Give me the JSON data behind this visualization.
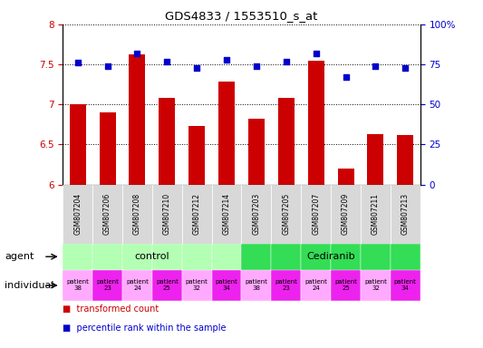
{
  "title": "GDS4833 / 1553510_s_at",
  "samples": [
    "GSM807204",
    "GSM807206",
    "GSM807208",
    "GSM807210",
    "GSM807212",
    "GSM807214",
    "GSM807203",
    "GSM807205",
    "GSM807207",
    "GSM807209",
    "GSM807211",
    "GSM807213"
  ],
  "bar_values": [
    7.0,
    6.9,
    7.62,
    7.08,
    6.73,
    7.28,
    6.82,
    7.08,
    7.55,
    6.2,
    6.63,
    6.62
  ],
  "dot_values": [
    76,
    74,
    82,
    77,
    73,
    78,
    74,
    77,
    82,
    67,
    74,
    73
  ],
  "bar_color": "#cc0000",
  "dot_color": "#0000cc",
  "ymin": 6.0,
  "ymax": 8.0,
  "yticks": [
    6.0,
    6.5,
    7.0,
    7.5,
    8.0
  ],
  "y2min": 0,
  "y2max": 100,
  "y2ticks": [
    0,
    25,
    50,
    75,
    100
  ],
  "y2tick_labels": [
    "0",
    "25",
    "50",
    "75",
    "100%"
  ],
  "agent_labels": [
    "control",
    "Cediranib"
  ],
  "agent_color_control": "#b3ffb3",
  "agent_color_cediranib": "#33dd55",
  "individual_labels": [
    "patient\n38",
    "patient\n23",
    "patient\n24",
    "patient\n25",
    "patient\n32",
    "patient\n34",
    "patient\n38",
    "patient\n23",
    "patient\n24",
    "patient\n25",
    "patient\n32",
    "patient\n34"
  ],
  "individual_color_light": "#ffaaff",
  "individual_color_strong": "#ee22ee",
  "individual_alt": [
    0,
    1,
    0,
    1,
    0,
    1,
    0,
    1,
    0,
    1,
    0,
    1
  ],
  "legend_bar_label": "transformed count",
  "legend_dot_label": "percentile rank within the sample",
  "xlabel_agent": "agent",
  "xlabel_individual": "individual",
  "bar_bottom": 6.0,
  "xtick_bg": "#d8d8d8"
}
